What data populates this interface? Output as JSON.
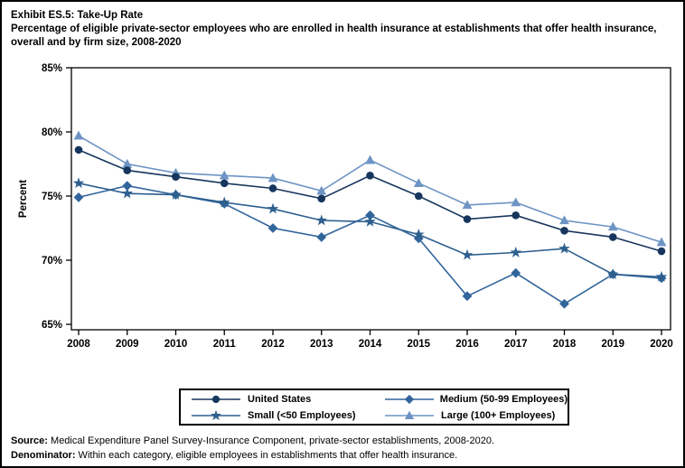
{
  "title": "Exhibit ES.5: Take-Up Rate",
  "subtitle": "Percentage of eligible private-sector employees who are enrolled in health insurance at establishments that offer health insurance, overall and by firm size, 2008-2020",
  "footnotes": {
    "source_label": "Source:",
    "source_text": " Medical Expenditure Panel Survey-Insurance Component, private-sector establishments, 2008-2020.",
    "denominator_label": "Denominator:",
    "denominator_text": " Within each category, eligible employees in establishments that offer health insurance."
  },
  "chart_data": {
    "type": "line",
    "title": "Exhibit ES.5: Take-Up Rate",
    "xlabel": "",
    "ylabel": "Percent",
    "ylim": [
      64.3,
      85
    ],
    "ytick_values": [
      85,
      80,
      75,
      70,
      65
    ],
    "ytick_labels": [
      "85%",
      "80%",
      "75%",
      "70%",
      "65%"
    ],
    "grid": false,
    "legend_position": "bottom",
    "categories": [
      2008,
      2009,
      2010,
      2011,
      2012,
      2013,
      2014,
      2015,
      2016,
      2017,
      2018,
      2019,
      2020
    ],
    "series": [
      {
        "name": "United States",
        "marker": "circle",
        "color": "#17365d",
        "values": [
          78.6,
          77.0,
          76.5,
          76.0,
          75.6,
          74.8,
          76.6,
          75.0,
          73.2,
          73.5,
          72.3,
          71.8,
          70.7
        ]
      },
      {
        "name": "Small (<50 Employees)",
        "marker": "star",
        "color": "#2d5f8e",
        "values": [
          76.0,
          75.2,
          75.1,
          74.5,
          74.0,
          73.1,
          73.0,
          72.0,
          70.4,
          70.6,
          70.9,
          68.9,
          68.7
        ]
      },
      {
        "name": "Medium (50-99 Employees)",
        "marker": "diamond",
        "color": "#31659c",
        "values": [
          74.9,
          75.8,
          75.1,
          74.4,
          72.5,
          71.8,
          73.5,
          71.7,
          67.2,
          69.0,
          66.6,
          68.9,
          68.6
        ]
      },
      {
        "name": "Large (100+ Employees)",
        "marker": "triangle",
        "color": "#6d94c4",
        "values": [
          79.7,
          77.5,
          76.8,
          76.6,
          76.4,
          75.4,
          77.8,
          76.0,
          74.3,
          74.5,
          73.1,
          72.6,
          71.4
        ]
      }
    ]
  },
  "legend_order": [
    0,
    2,
    1,
    3
  ]
}
